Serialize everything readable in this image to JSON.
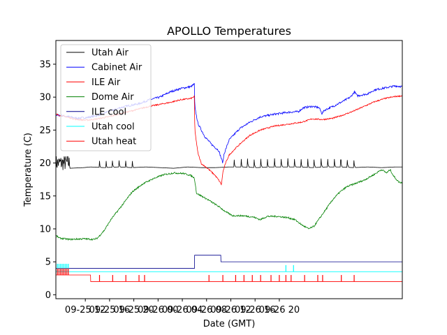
{
  "chart_data": {
    "type": "line",
    "title": "APOLLO Temperatures",
    "xlabel": "Date (GMT)",
    "ylabel": "Temperature (C)",
    "xlim": [
      0,
      100
    ],
    "ylim": [
      -0.6,
      38.6
    ],
    "grid": false,
    "legend_position": "top-left",
    "yticks": [
      0,
      5,
      10,
      15,
      20,
      25,
      30,
      35
    ],
    "xticks": [
      {
        "x": 8.5,
        "label": "09-25 12"
      },
      {
        "x": 15.5,
        "label": "09-25 16"
      },
      {
        "x": 22.5,
        "label": "09-25 20"
      },
      {
        "x": 29.5,
        "label": "09-26 00"
      },
      {
        "x": 36.5,
        "label": "09-26 04"
      },
      {
        "x": 43.5,
        "label": "09-26 08"
      },
      {
        "x": 50.5,
        "label": "09-26 12"
      },
      {
        "x": 57.5,
        "label": "09-26 16"
      },
      {
        "x": 64.5,
        "label": "09-26 20"
      }
    ],
    "series": [
      {
        "name": "Utah Air",
        "color": "#000000",
        "points": [
          [
            0,
            19.3
          ],
          [
            3,
            19.4
          ],
          [
            4,
            19.2
          ],
          [
            8,
            19.3
          ],
          [
            10,
            19.4
          ],
          [
            14,
            19.3
          ],
          [
            18,
            19.4
          ],
          [
            22,
            19.3
          ],
          [
            26,
            19.4
          ],
          [
            30,
            19.3
          ],
          [
            34,
            19.2
          ],
          [
            38,
            19.4
          ],
          [
            42,
            19.3
          ],
          [
            46,
            19.3
          ],
          [
            50,
            19.4
          ],
          [
            54,
            19.4
          ],
          [
            58,
            19.3
          ],
          [
            62,
            19.4
          ],
          [
            66,
            19.4
          ],
          [
            70,
            19.4
          ],
          [
            74,
            19.3
          ],
          [
            78,
            19.4
          ],
          [
            82,
            19.4
          ],
          [
            86,
            19.3
          ],
          [
            90,
            19.4
          ],
          [
            94,
            19.3
          ],
          [
            98,
            19.4
          ],
          [
            100,
            19.4
          ]
        ],
        "noise": {
          "x_from": 0,
          "x_to": 4,
          "low": 18.8,
          "high": 21.2
        },
        "spikes": {
          "x_from": 12.5,
          "x_to": 24,
          "every": 1.9,
          "height": 1.1,
          "extra": [
            [
              51.4,
              1.1
            ],
            [
              53.4,
              1.2
            ],
            [
              55.3,
              1.3
            ],
            [
              57.2,
              1.2
            ],
            [
              59.1,
              1.3
            ],
            [
              61,
              1.2
            ],
            [
              63,
              1.3
            ],
            [
              65,
              1.2
            ],
            [
              66.9,
              1.3
            ],
            [
              68.8,
              1.2
            ],
            [
              70.7,
              1.2
            ],
            [
              72.6,
              1.3
            ],
            [
              74.5,
              1.2
            ],
            [
              76.5,
              1.3
            ],
            [
              78.4,
              1.2
            ],
            [
              80.3,
              1.2
            ],
            [
              82.2,
              1.1
            ],
            [
              84.1,
              1.1
            ],
            [
              86,
              1.1
            ]
          ]
        }
      },
      {
        "name": "Cabinet Air",
        "color": "#0000ff",
        "points": [
          [
            0,
            27.3
          ],
          [
            3,
            27.1
          ],
          [
            6,
            26.8
          ],
          [
            9,
            26.9
          ],
          [
            12,
            27.2
          ],
          [
            15,
            27.8
          ],
          [
            18,
            28.3
          ],
          [
            21,
            28.7
          ],
          [
            24,
            29.0
          ],
          [
            27,
            29.6
          ],
          [
            30,
            30.0
          ],
          [
            33,
            30.8
          ],
          [
            36,
            31.3
          ],
          [
            39,
            31.6
          ],
          [
            40,
            32.0
          ],
          [
            40.1,
            28.5
          ],
          [
            41,
            26.0
          ],
          [
            43,
            24.0
          ],
          [
            45,
            22.8
          ],
          [
            47,
            21.9
          ],
          [
            48.2,
            20.0
          ],
          [
            48.5,
            21.3
          ],
          [
            50,
            23.5
          ],
          [
            53,
            25.2
          ],
          [
            56,
            26.2
          ],
          [
            59,
            27.0
          ],
          [
            63,
            27.4
          ],
          [
            67,
            27.7
          ],
          [
            70,
            27.8
          ],
          [
            71.5,
            28.4
          ],
          [
            74,
            28.6
          ],
          [
            76,
            28.4
          ],
          [
            76.8,
            27.5
          ],
          [
            77.5,
            28.0
          ],
          [
            80,
            28.6
          ],
          [
            83,
            29.4
          ],
          [
            85,
            30.0
          ],
          [
            86.2,
            30.8
          ],
          [
            87,
            30.2
          ],
          [
            90,
            30.5
          ],
          [
            92,
            31.1
          ],
          [
            95,
            31.4
          ],
          [
            98,
            31.7
          ],
          [
            100,
            31.6
          ]
        ],
        "noise": {
          "x_from": 0,
          "x_to": 100,
          "amp": 0.15
        }
      },
      {
        "name": "ILE Air",
        "color": "#ff0000",
        "points": [
          [
            0,
            27.4
          ],
          [
            3,
            27.0
          ],
          [
            6,
            26.6
          ],
          [
            9,
            26.5
          ],
          [
            12,
            26.7
          ],
          [
            15,
            27.0
          ],
          [
            18,
            27.4
          ],
          [
            21,
            27.8
          ],
          [
            24,
            28.2
          ],
          [
            27,
            28.6
          ],
          [
            30,
            28.9
          ],
          [
            33,
            29.2
          ],
          [
            36,
            29.6
          ],
          [
            39,
            29.8
          ],
          [
            40,
            30.1
          ],
          [
            40.1,
            25.0
          ],
          [
            41,
            21.5
          ],
          [
            42,
            19.9
          ],
          [
            44,
            19.1
          ],
          [
            46,
            18.1
          ],
          [
            47,
            17.4
          ],
          [
            47.5,
            17.0
          ],
          [
            47.8,
            16.7
          ],
          [
            48.2,
            18.6
          ],
          [
            49,
            20.0
          ],
          [
            50,
            21.2
          ],
          [
            52,
            22.3
          ],
          [
            54,
            23.3
          ],
          [
            56,
            24.2
          ],
          [
            59,
            25.0
          ],
          [
            63,
            25.6
          ],
          [
            67,
            25.9
          ],
          [
            71,
            26.2
          ],
          [
            74,
            26.7
          ],
          [
            77,
            26.6
          ],
          [
            80,
            26.8
          ],
          [
            83,
            27.3
          ],
          [
            86,
            27.9
          ],
          [
            89,
            28.6
          ],
          [
            92,
            29.3
          ],
          [
            95,
            29.8
          ],
          [
            98,
            30.1
          ],
          [
            100,
            30.2
          ]
        ],
        "noise": {
          "x_from": 0,
          "x_to": 100,
          "amp": 0.1
        }
      },
      {
        "name": "Dome Air",
        "color": "#008000",
        "points": [
          [
            0,
            9.0
          ],
          [
            1,
            8.6
          ],
          [
            4,
            8.4
          ],
          [
            8,
            8.5
          ],
          [
            11,
            8.4
          ],
          [
            12,
            8.6
          ],
          [
            14,
            9.8
          ],
          [
            16,
            11.5
          ],
          [
            19,
            13.5
          ],
          [
            22,
            15.6
          ],
          [
            25,
            16.8
          ],
          [
            28,
            17.6
          ],
          [
            31,
            18.2
          ],
          [
            34,
            18.5
          ],
          [
            37,
            18.4
          ],
          [
            39,
            18.1
          ],
          [
            40,
            17.7
          ],
          [
            40.6,
            15.4
          ],
          [
            42,
            15.0
          ],
          [
            44,
            14.4
          ],
          [
            47,
            13.4
          ],
          [
            49,
            12.6
          ],
          [
            51,
            12.0
          ],
          [
            54,
            12.0
          ],
          [
            57,
            11.8
          ],
          [
            59,
            11.4
          ],
          [
            61,
            11.9
          ],
          [
            64,
            11.9
          ],
          [
            67,
            11.7
          ],
          [
            69,
            11.4
          ],
          [
            71,
            10.6
          ],
          [
            73,
            10.0
          ],
          [
            74.5,
            10.4
          ],
          [
            76,
            11.5
          ],
          [
            78,
            13.0
          ],
          [
            80,
            14.5
          ],
          [
            82,
            15.6
          ],
          [
            84,
            16.4
          ],
          [
            86,
            16.8
          ],
          [
            89,
            17.4
          ],
          [
            92,
            18.3
          ],
          [
            94,
            19.0
          ],
          [
            95.5,
            18.5
          ],
          [
            96.5,
            19.0
          ],
          [
            97.5,
            18.0
          ],
          [
            99,
            17.1
          ],
          [
            100,
            17.0
          ]
        ],
        "noise": {
          "x_from": 0,
          "x_to": 100,
          "amp": 0.12
        }
      },
      {
        "name": "ILE cool",
        "color": "#00008b",
        "points": [
          [
            0,
            4.0
          ],
          [
            40,
            4.0
          ],
          [
            40.05,
            6.0
          ],
          [
            47.6,
            6.0
          ],
          [
            47.65,
            5.0
          ],
          [
            100,
            5.0
          ]
        ]
      },
      {
        "name": "Utah cool",
        "color": "#00ffff",
        "points": [
          [
            0,
            3.5
          ],
          [
            100,
            3.5
          ]
        ],
        "pulses": {
          "x_from": 0,
          "x_to": 4,
          "every": 0.45,
          "height": 1.2,
          "extra": [
            [
              66.4,
              1.0
            ],
            [
              68.6,
              1.0
            ]
          ]
        }
      },
      {
        "name": "Utah heat",
        "color": "#ff0000",
        "points": [
          [
            0,
            3.0
          ],
          [
            10,
            3.0
          ],
          [
            10.05,
            2.0
          ],
          [
            100,
            2.0
          ]
        ],
        "pulses": {
          "x_from": 0,
          "x_to": 4,
          "every": 0.45,
          "height": 1.0,
          "extra": [
            [
              12.6,
              1.0
            ],
            [
              16.4,
              1.0
            ],
            [
              20.2,
              1.0
            ],
            [
              24,
              1.0
            ],
            [
              25.6,
              1.0
            ],
            [
              44.2,
              1.0
            ],
            [
              48.2,
              1.0
            ],
            [
              51.9,
              1.0
            ],
            [
              54.3,
              1.0
            ],
            [
              56.7,
              1.0
            ],
            [
              59.1,
              1.0
            ],
            [
              62.1,
              1.0
            ],
            [
              64.5,
              1.0
            ],
            [
              66.4,
              1.0
            ],
            [
              67.9,
              1.0
            ],
            [
              71.8,
              1.0
            ],
            [
              75.6,
              1.0
            ],
            [
              77,
              1.0
            ],
            [
              82.4,
              1.0
            ],
            [
              86.1,
              1.0
            ]
          ]
        }
      }
    ]
  }
}
